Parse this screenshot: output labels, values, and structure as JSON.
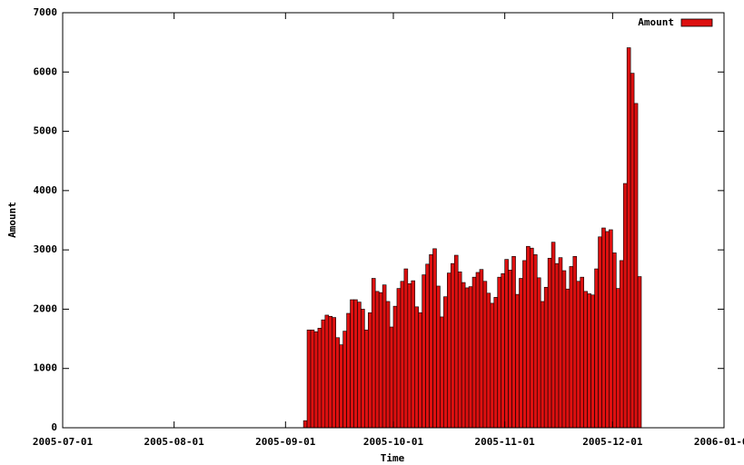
{
  "chart_data": {
    "type": "bar",
    "x_label": "Time",
    "y_label": "Amount",
    "x": [
      "2005-09-06",
      "2005-09-07",
      "2005-09-08",
      "2005-09-09",
      "2005-09-10",
      "2005-09-11",
      "2005-09-12",
      "2005-09-13",
      "2005-09-14",
      "2005-09-15",
      "2005-09-16",
      "2005-09-17",
      "2005-09-18",
      "2005-09-19",
      "2005-09-20",
      "2005-09-21",
      "2005-09-22",
      "2005-09-23",
      "2005-09-24",
      "2005-09-25",
      "2005-09-26",
      "2005-09-27",
      "2005-09-28",
      "2005-09-29",
      "2005-09-30",
      "2005-10-01",
      "2005-10-02",
      "2005-10-03",
      "2005-10-04",
      "2005-10-05",
      "2005-10-06",
      "2005-10-07",
      "2005-10-08",
      "2005-10-09",
      "2005-10-10",
      "2005-10-11",
      "2005-10-12",
      "2005-10-13",
      "2005-10-14",
      "2005-10-15",
      "2005-10-16",
      "2005-10-17",
      "2005-10-18",
      "2005-10-19",
      "2005-10-20",
      "2005-10-21",
      "2005-10-22",
      "2005-10-23",
      "2005-10-24",
      "2005-10-25",
      "2005-10-26",
      "2005-10-27",
      "2005-10-28",
      "2005-10-29",
      "2005-10-30",
      "2005-10-31",
      "2005-11-01",
      "2005-11-02",
      "2005-11-03",
      "2005-11-04",
      "2005-11-05",
      "2005-11-06",
      "2005-11-07",
      "2005-11-08",
      "2005-11-09",
      "2005-11-10",
      "2005-11-11",
      "2005-11-12",
      "2005-11-13",
      "2005-11-14",
      "2005-11-15",
      "2005-11-16",
      "2005-11-17",
      "2005-11-18",
      "2005-11-19",
      "2005-11-20",
      "2005-11-21",
      "2005-11-22",
      "2005-11-23",
      "2005-11-24",
      "2005-11-25",
      "2005-11-26",
      "2005-11-27",
      "2005-11-28",
      "2005-11-29",
      "2005-11-30",
      "2005-12-01",
      "2005-12-02",
      "2005-12-03",
      "2005-12-04",
      "2005-12-05",
      "2005-12-06",
      "2005-12-07",
      "2005-12-08"
    ],
    "series": [
      {
        "name": "Amount",
        "color": "#dd1010",
        "values": [
          120,
          1650,
          1650,
          1620,
          1680,
          1820,
          1900,
          1880,
          1860,
          1520,
          1400,
          1630,
          1930,
          2160,
          2160,
          2120,
          2000,
          1650,
          1940,
          2520,
          2300,
          2280,
          2410,
          2130,
          1700,
          2050,
          2350,
          2470,
          2680,
          2430,
          2480,
          2040,
          1940,
          2580,
          2760,
          2920,
          3020,
          2390,
          1870,
          2210,
          2610,
          2770,
          2910,
          2630,
          2450,
          2360,
          2380,
          2540,
          2620,
          2670,
          2470,
          2270,
          2100,
          2200,
          2540,
          2600,
          2840,
          2660,
          2890,
          2250,
          2520,
          2820,
          3060,
          3030,
          2920,
          2530,
          2130,
          2370,
          2860,
          3130,
          2770,
          2870,
          2650,
          2340,
          2720,
          2890,
          2470,
          2540,
          2300,
          2260,
          2240,
          2680,
          3220,
          3370,
          3310,
          3340,
          2950,
          2350,
          2820,
          4120,
          6410,
          5980,
          5470,
          2550
        ]
      }
    ],
    "xlim": [
      "2005-07-01",
      "2006-01-01"
    ],
    "xticks": [
      "2005-07-01",
      "2005-08-01",
      "2005-09-01",
      "2005-10-01",
      "2005-11-01",
      "2005-12-01",
      "2006-01-01"
    ],
    "ylim": [
      0,
      7000
    ],
    "yticks": [
      0,
      1000,
      2000,
      3000,
      4000,
      5000,
      6000,
      7000
    ],
    "legend": "upper right"
  }
}
